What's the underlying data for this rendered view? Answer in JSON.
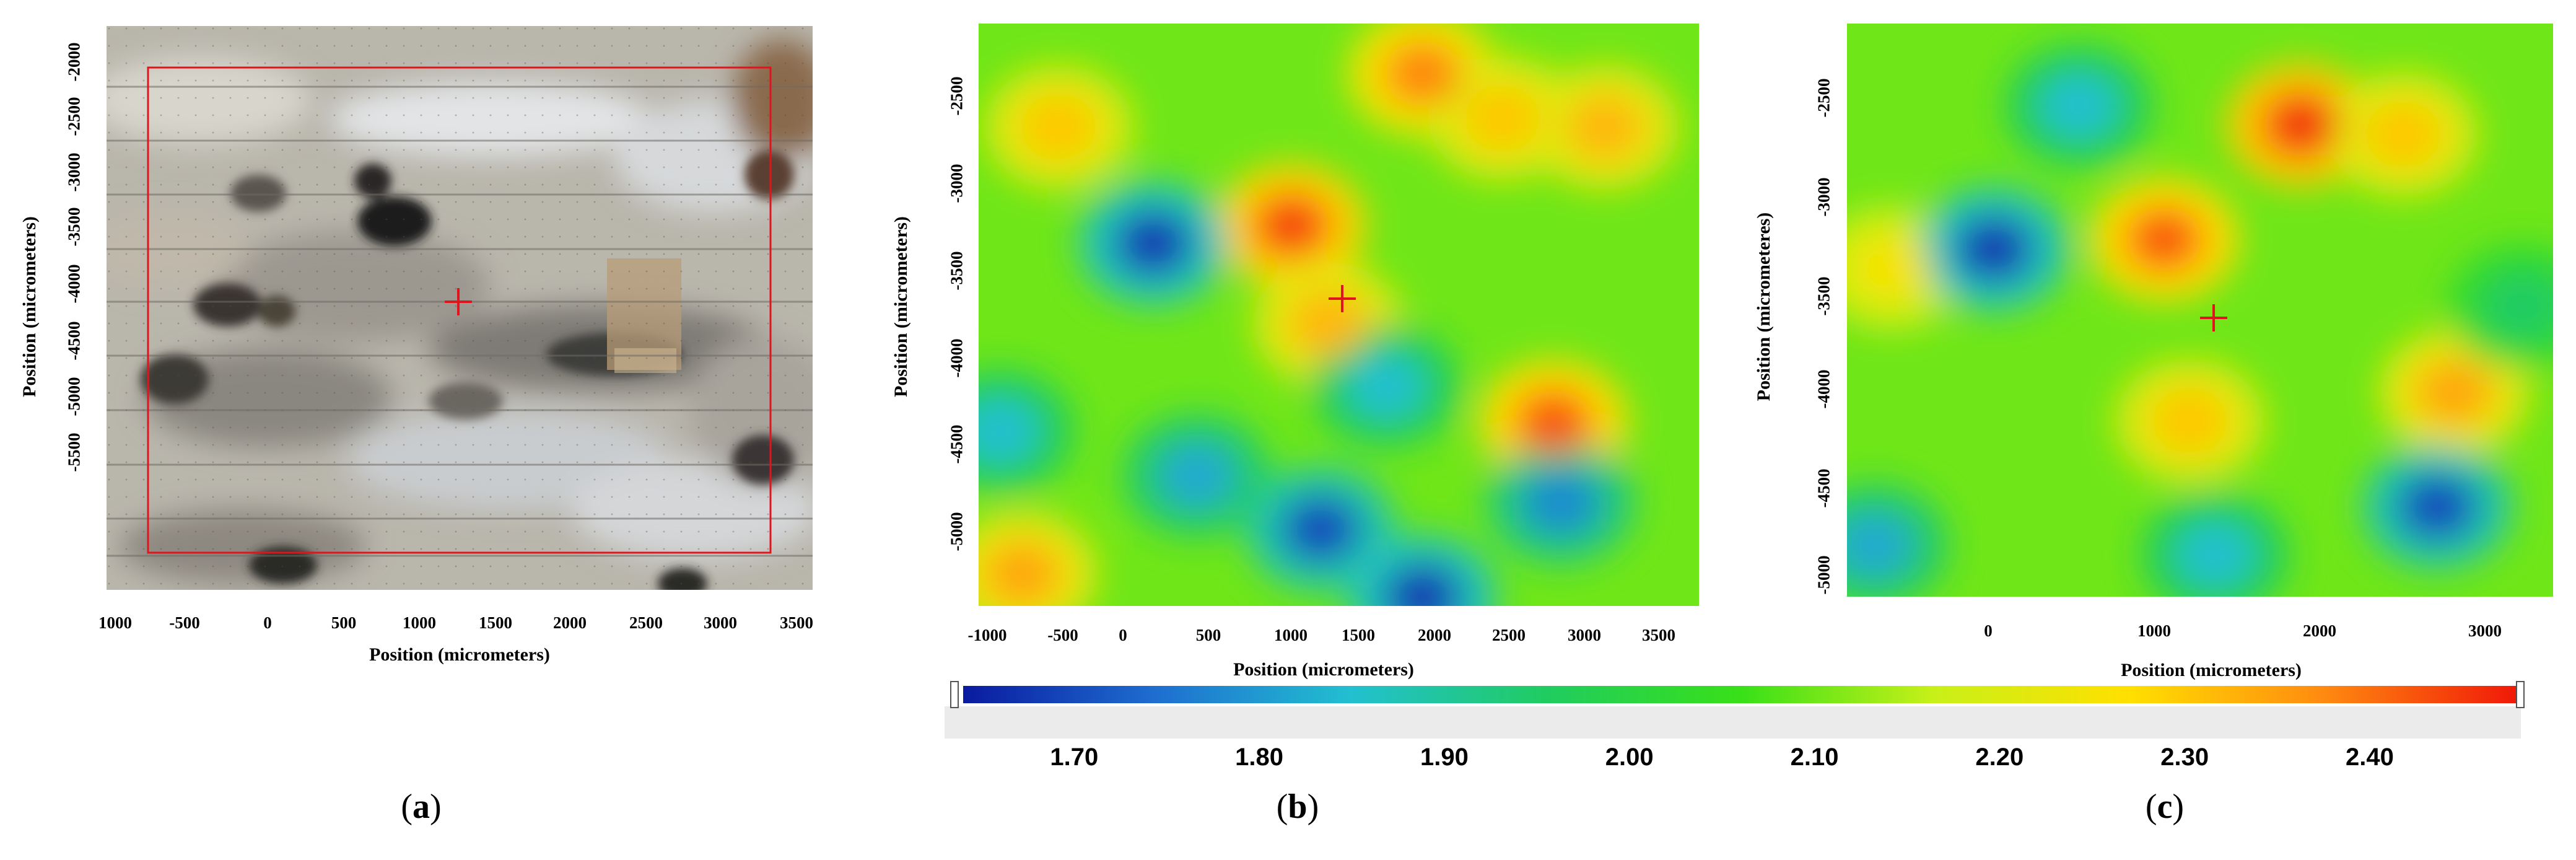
{
  "figure": {
    "panels": [
      {
        "id": "a",
        "label_text": "(a)",
        "label_letter": "a",
        "kind": "photomicrograph",
        "x_axis_title": "Position (micrometers)",
        "y_axis_title": "Position (micrometers)",
        "x_ticks": [
          "1000",
          "-500",
          "0",
          "500",
          "1000",
          "1500",
          "2000",
          "2500",
          "3000",
          "3500"
        ],
        "y_ticks": [
          "-2000",
          "-2500",
          "-3000",
          "-3500",
          "-4000",
          "-4500",
          "-5000",
          "-5500"
        ],
        "overlay": {
          "rectangle_color": "#e0141c",
          "marker": "red cross"
        }
      },
      {
        "id": "b",
        "label_text": "(b)",
        "label_letter": "b",
        "kind": "heatmap",
        "x_axis_title": "Position (micrometers)",
        "y_axis_title": "Position (micrometers)",
        "x_ticks": [
          "-1000",
          "-500",
          "0",
          "500",
          "1000",
          "1500",
          "2000",
          "2500",
          "3000",
          "3500"
        ],
        "y_ticks": [
          "-2500",
          "-3000",
          "-3500",
          "-4000",
          "-4500",
          "-5000"
        ],
        "overlay": {
          "marker": "red cross"
        }
      },
      {
        "id": "c",
        "label_text": "(c)",
        "label_letter": "c",
        "kind": "heatmap",
        "x_axis_title": "Position (micrometers)",
        "y_axis_title": "Position (micrometeres)",
        "x_ticks": [
          "0",
          "1000",
          "2000",
          "3000"
        ],
        "y_ticks": [
          "-2500",
          "-3000",
          "-3500",
          "-4000",
          "-4500",
          "-5000"
        ],
        "overlay": {
          "marker": "red cross"
        }
      }
    ],
    "colorbar": {
      "ticks": [
        "1.70",
        "1.80",
        "1.90",
        "2.00",
        "2.10",
        "2.20",
        "2.30",
        "2.40"
      ],
      "range": [
        1.64,
        2.48
      ],
      "colors": [
        "#0a1aa0",
        "#1e6fd0",
        "#22c0d0",
        "#20cc60",
        "#38e018",
        "#c8f018",
        "#ffe000",
        "#ff8a10",
        "#f01808"
      ]
    }
  },
  "chart_data": [
    {
      "type": "heatmap",
      "title": "",
      "xlabel": "Position (micrometers)",
      "ylabel": "Position (micrometers)",
      "xlim": [
        -1100,
        3850
      ],
      "ylim": [
        -5380,
        -2120
      ],
      "x_ticks": [
        -1000,
        -500,
        0,
        500,
        1000,
        1500,
        2000,
        2500,
        3000,
        3500
      ],
      "y_ticks": [
        -2500,
        -3000,
        -3500,
        -4000,
        -4500,
        -5000
      ],
      "value_range": [
        1.64,
        2.48
      ],
      "colorscale": "blue-cyan-green-yellow-red",
      "features": [
        {
          "x": 1050,
          "y": -3250,
          "value": 2.44
        },
        {
          "x": 1950,
          "y": -2400,
          "value": 2.38
        },
        {
          "x": 2850,
          "y": -4350,
          "value": 2.42
        },
        {
          "x": 3200,
          "y": -2700,
          "value": 2.32
        },
        {
          "x": 2500,
          "y": -2650,
          "value": 2.3
        },
        {
          "x": 1300,
          "y": -3800,
          "value": 2.32
        },
        {
          "x": -800,
          "y": -5200,
          "value": 2.34
        },
        {
          "x": -550,
          "y": -2700,
          "value": 2.3
        },
        {
          "x": 100,
          "y": -3350,
          "value": 1.68
        },
        {
          "x": 1250,
          "y": -4950,
          "value": 1.7
        },
        {
          "x": 1950,
          "y": -5330,
          "value": 1.68
        },
        {
          "x": 2900,
          "y": -4800,
          "value": 1.78
        },
        {
          "x": 400,
          "y": -4650,
          "value": 1.82
        },
        {
          "x": -950,
          "y": -4400,
          "value": 1.85
        },
        {
          "x": 1700,
          "y": -4150,
          "value": 1.85
        }
      ],
      "marker": {
        "x": 1400,
        "y": -3660
      }
    },
    {
      "type": "heatmap",
      "title": "",
      "xlabel": "Position (micrometers)",
      "ylabel": "Position (micrometeres)",
      "xlim": [
        -860,
        3280
      ],
      "ylim": [
        -5120,
        -2120
      ],
      "x_ticks": [
        0,
        1000,
        2000,
        3000
      ],
      "y_ticks": [
        -2500,
        -3000,
        -3500,
        -4000,
        -4500,
        -5000
      ],
      "value_range": [
        1.64,
        2.48
      ],
      "colorscale": "blue-cyan-green-yellow-red",
      "features": [
        {
          "x": 1800,
          "y": -2650,
          "value": 2.46
        },
        {
          "x": 1000,
          "y": -3250,
          "value": 2.42
        },
        {
          "x": 2400,
          "y": -2700,
          "value": 2.3
        },
        {
          "x": 2700,
          "y": -4050,
          "value": 2.34
        },
        {
          "x": 1150,
          "y": -4200,
          "value": 2.3
        },
        {
          "x": -600,
          "y": -3400,
          "value": 2.25
        },
        {
          "x": 0,
          "y": -3300,
          "value": 1.68
        },
        {
          "x": 2600,
          "y": -4650,
          "value": 1.7
        },
        {
          "x": 1300,
          "y": -4900,
          "value": 1.85
        },
        {
          "x": 500,
          "y": -2550,
          "value": 1.85
        },
        {
          "x": -700,
          "y": -4850,
          "value": 1.82
        },
        {
          "x": 3100,
          "y": -3600,
          "value": 1.95
        }
      ],
      "marker": {
        "x": 1290,
        "y": -3660
      }
    }
  ]
}
